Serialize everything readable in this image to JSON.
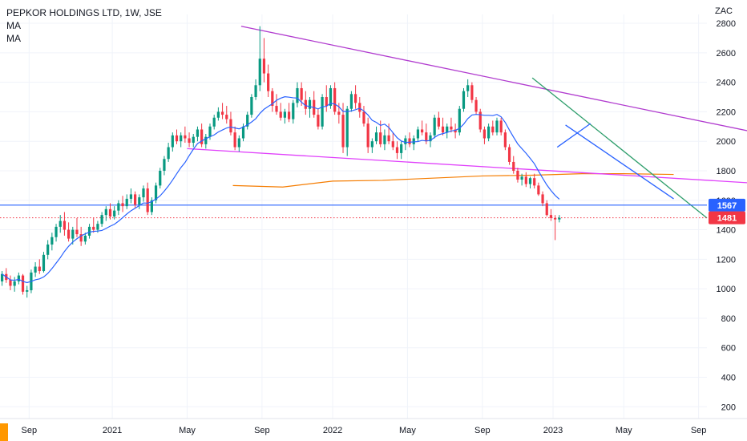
{
  "legend": {
    "title": "PEPKOR HOLDINGS LTD, 1W, JSE",
    "ma1": "MA",
    "ma2": "MA"
  },
  "currency": "ZAC",
  "colors": {
    "up": "#089981",
    "down": "#f23645",
    "ma_fast": "#2962ff",
    "ma_slow": "#f57c00",
    "trend_purple": "#b13ccf",
    "trend_pink": "#e040fb",
    "trend_green": "#2e9e6b",
    "support": "#2962ff",
    "last_price": "#f23645",
    "grid": "#f0f3fa"
  },
  "chart_data": {
    "type": "candlestick",
    "x_labels": [
      "Sep",
      "2021",
      "May",
      "Sep",
      "2022",
      "May",
      "Sep",
      "2023",
      "May",
      "Sep"
    ],
    "y_ticks": [
      200,
      400,
      600,
      800,
      1000,
      1200,
      1400,
      1600,
      1800,
      2000,
      2200,
      2400,
      2600,
      2800
    ],
    "ylim": [
      120,
      2860
    ],
    "x_range_weeks": [
      0,
      170
    ],
    "x_label_weeks": [
      7,
      27,
      45,
      63,
      80,
      98,
      116,
      133,
      150,
      168
    ],
    "horizontal_lines": [
      {
        "name": "support",
        "value": 1567,
        "label": "1567",
        "style": "solid"
      },
      {
        "name": "last-price",
        "value": 1481,
        "label": "1481",
        "style": "dotted"
      }
    ],
    "trendlines": [
      {
        "name": "upper-resistance",
        "color": "purple",
        "points": [
          [
            58,
            2780
          ],
          [
            192,
            2000
          ]
        ]
      },
      {
        "name": "lower-support",
        "color": "pink",
        "points": [
          [
            45,
            1950
          ],
          [
            185,
            1710
          ]
        ]
      },
      {
        "name": "downtrend-1",
        "color": "green",
        "points": [
          [
            128,
            2430
          ],
          [
            170,
            1480
          ]
        ]
      },
      {
        "name": "downtrend-2",
        "color": "blue",
        "points": [
          [
            136,
            2110
          ],
          [
            162,
            1610
          ]
        ]
      },
      {
        "name": "flag",
        "color": "blue",
        "points": [
          [
            134,
            1960
          ],
          [
            142,
            2120
          ]
        ]
      }
    ],
    "ma_slow": [
      [
        56,
        1700
      ],
      [
        68,
        1690
      ],
      [
        80,
        1730
      ],
      [
        92,
        1735
      ],
      [
        104,
        1750
      ],
      [
        116,
        1765
      ],
      [
        128,
        1770
      ],
      [
        140,
        1780
      ],
      [
        150,
        1780
      ],
      [
        162,
        1775
      ]
    ],
    "candles": [
      [
        1050,
        1120,
        1020,
        1100
      ],
      [
        1100,
        1140,
        1040,
        1060
      ],
      [
        1060,
        1090,
        990,
        1020
      ],
      [
        1020,
        1080,
        980,
        1050
      ],
      [
        1050,
        1110,
        1030,
        1090
      ],
      [
        1090,
        1100,
        960,
        980
      ],
      [
        980,
        1020,
        940,
        990
      ],
      [
        990,
        1130,
        970,
        1110
      ],
      [
        1110,
        1180,
        1080,
        1150
      ],
      [
        1150,
        1200,
        1100,
        1120
      ],
      [
        1120,
        1250,
        1110,
        1230
      ],
      [
        1230,
        1330,
        1200,
        1300
      ],
      [
        1300,
        1380,
        1260,
        1350
      ],
      [
        1350,
        1440,
        1320,
        1420
      ],
      [
        1420,
        1500,
        1380,
        1460
      ],
      [
        1460,
        1520,
        1360,
        1400
      ],
      [
        1400,
        1450,
        1320,
        1340
      ],
      [
        1340,
        1420,
        1300,
        1400
      ],
      [
        1400,
        1480,
        1350,
        1370
      ],
      [
        1370,
        1420,
        1290,
        1320
      ],
      [
        1320,
        1380,
        1300,
        1360
      ],
      [
        1360,
        1440,
        1340,
        1420
      ],
      [
        1420,
        1480,
        1380,
        1400
      ],
      [
        1400,
        1460,
        1380,
        1440
      ],
      [
        1440,
        1520,
        1420,
        1500
      ],
      [
        1500,
        1560,
        1460,
        1540
      ],
      [
        1540,
        1580,
        1470,
        1490
      ],
      [
        1490,
        1560,
        1470,
        1530
      ],
      [
        1530,
        1600,
        1500,
        1580
      ],
      [
        1580,
        1630,
        1520,
        1560
      ],
      [
        1560,
        1640,
        1540,
        1610
      ],
      [
        1610,
        1680,
        1580,
        1640
      ],
      [
        1640,
        1660,
        1550,
        1570
      ],
      [
        1570,
        1640,
        1540,
        1620
      ],
      [
        1620,
        1700,
        1590,
        1680
      ],
      [
        1680,
        1720,
        1500,
        1520
      ],
      [
        1520,
        1620,
        1500,
        1600
      ],
      [
        1600,
        1720,
        1580,
        1700
      ],
      [
        1700,
        1820,
        1680,
        1800
      ],
      [
        1800,
        1900,
        1770,
        1880
      ],
      [
        1880,
        1990,
        1860,
        1960
      ],
      [
        1960,
        2060,
        1930,
        2040
      ],
      [
        2040,
        2080,
        1980,
        2000
      ],
      [
        2000,
        2060,
        1960,
        2040
      ],
      [
        2040,
        2100,
        1990,
        2020
      ],
      [
        2020,
        2060,
        1960,
        1990
      ],
      [
        1990,
        2050,
        1960,
        2030
      ],
      [
        2030,
        2100,
        2000,
        2080
      ],
      [
        2080,
        2120,
        1960,
        1980
      ],
      [
        1980,
        2050,
        1950,
        2030
      ],
      [
        2030,
        2120,
        2010,
        2100
      ],
      [
        2100,
        2180,
        2080,
        2160
      ],
      [
        2160,
        2230,
        2140,
        2200
      ],
      [
        2200,
        2260,
        2150,
        2180
      ],
      [
        2180,
        2240,
        2120,
        2150
      ],
      [
        2150,
        2200,
        2040,
        2060
      ],
      [
        2060,
        2100,
        1940,
        1960
      ],
      [
        1960,
        2040,
        1930,
        2020
      ],
      [
        2020,
        2120,
        2000,
        2100
      ],
      [
        2100,
        2200,
        2080,
        2180
      ],
      [
        2180,
        2320,
        2160,
        2300
      ],
      [
        2300,
        2420,
        2280,
        2380
      ],
      [
        2380,
        2780,
        2340,
        2560
      ],
      [
        2560,
        2700,
        2400,
        2460
      ],
      [
        2460,
        2520,
        2300,
        2340
      ],
      [
        2340,
        2360,
        2200,
        2240
      ],
      [
        2240,
        2320,
        2180,
        2200
      ],
      [
        2200,
        2260,
        2140,
        2160
      ],
      [
        2160,
        2220,
        2120,
        2200
      ],
      [
        2200,
        2260,
        2130,
        2150
      ],
      [
        2150,
        2280,
        2120,
        2260
      ],
      [
        2260,
        2400,
        2230,
        2360
      ],
      [
        2360,
        2400,
        2240,
        2280
      ],
      [
        2280,
        2340,
        2180,
        2220
      ],
      [
        2220,
        2300,
        2160,
        2280
      ],
      [
        2280,
        2340,
        2160,
        2180
      ],
      [
        2180,
        2220,
        2080,
        2100
      ],
      [
        2100,
        2320,
        2080,
        2300
      ],
      [
        2300,
        2380,
        2200,
        2240
      ],
      [
        2240,
        2380,
        2220,
        2360
      ],
      [
        2360,
        2400,
        2180,
        2200
      ],
      [
        2200,
        2260,
        2120,
        2180
      ],
      [
        2180,
        2260,
        1920,
        1960
      ],
      [
        1960,
        2240,
        1900,
        2220
      ],
      [
        2220,
        2340,
        2200,
        2320
      ],
      [
        2320,
        2380,
        2220,
        2260
      ],
      [
        2260,
        2300,
        2160,
        2200
      ],
      [
        2200,
        2240,
        2100,
        2120
      ],
      [
        2120,
        2160,
        1920,
        1960
      ],
      [
        1960,
        2020,
        1920,
        2000
      ],
      [
        2000,
        2100,
        1980,
        2060
      ],
      [
        2060,
        2140,
        1960,
        1980
      ],
      [
        1980,
        2080,
        1940,
        2040
      ],
      [
        2040,
        2120,
        1980,
        2000
      ],
      [
        2000,
        2060,
        1940,
        1960
      ],
      [
        1960,
        2000,
        1880,
        1920
      ],
      [
        1920,
        2000,
        1880,
        1980
      ],
      [
        1980,
        2040,
        1940,
        2020
      ],
      [
        2020,
        2060,
        1960,
        1980
      ],
      [
        1980,
        2040,
        1940,
        2020
      ],
      [
        2020,
        2100,
        2000,
        2080
      ],
      [
        2080,
        2140,
        2040,
        2060
      ],
      [
        2060,
        2120,
        1980,
        2000
      ],
      [
        2000,
        2060,
        1960,
        2040
      ],
      [
        2040,
        2180,
        2020,
        2160
      ],
      [
        2160,
        2200,
        2080,
        2100
      ],
      [
        2100,
        2160,
        2040,
        2060
      ],
      [
        2060,
        2120,
        2020,
        2100
      ],
      [
        2100,
        2160,
        2060,
        2080
      ],
      [
        2080,
        2120,
        2020,
        2060
      ],
      [
        2060,
        2240,
        2040,
        2220
      ],
      [
        2220,
        2360,
        2200,
        2340
      ],
      [
        2340,
        2420,
        2300,
        2380
      ],
      [
        2380,
        2400,
        2260,
        2280
      ],
      [
        2280,
        2300,
        2180,
        2200
      ],
      [
        2200,
        2220,
        2060,
        2080
      ],
      [
        2080,
        2100,
        1980,
        2020
      ],
      [
        2020,
        2120,
        2000,
        2100
      ],
      [
        2100,
        2140,
        2040,
        2060
      ],
      [
        2060,
        2160,
        2040,
        2140
      ],
      [
        2140,
        2160,
        2040,
        2060
      ],
      [
        2060,
        2080,
        1940,
        1960
      ],
      [
        1960,
        1980,
        1840,
        1860
      ],
      [
        1860,
        1900,
        1780,
        1800
      ],
      [
        1800,
        1820,
        1720,
        1740
      ],
      [
        1740,
        1780,
        1700,
        1760
      ],
      [
        1760,
        1790,
        1690,
        1710
      ],
      [
        1710,
        1760,
        1680,
        1750
      ],
      [
        1750,
        1780,
        1680,
        1700
      ],
      [
        1700,
        1720,
        1630,
        1640
      ],
      [
        1640,
        1660,
        1560,
        1580
      ],
      [
        1580,
        1600,
        1490,
        1500
      ],
      [
        1500,
        1540,
        1460,
        1480
      ],
      [
        1480,
        1500,
        1330,
        1470
      ],
      [
        1470,
        1500,
        1450,
        1481
      ]
    ]
  }
}
